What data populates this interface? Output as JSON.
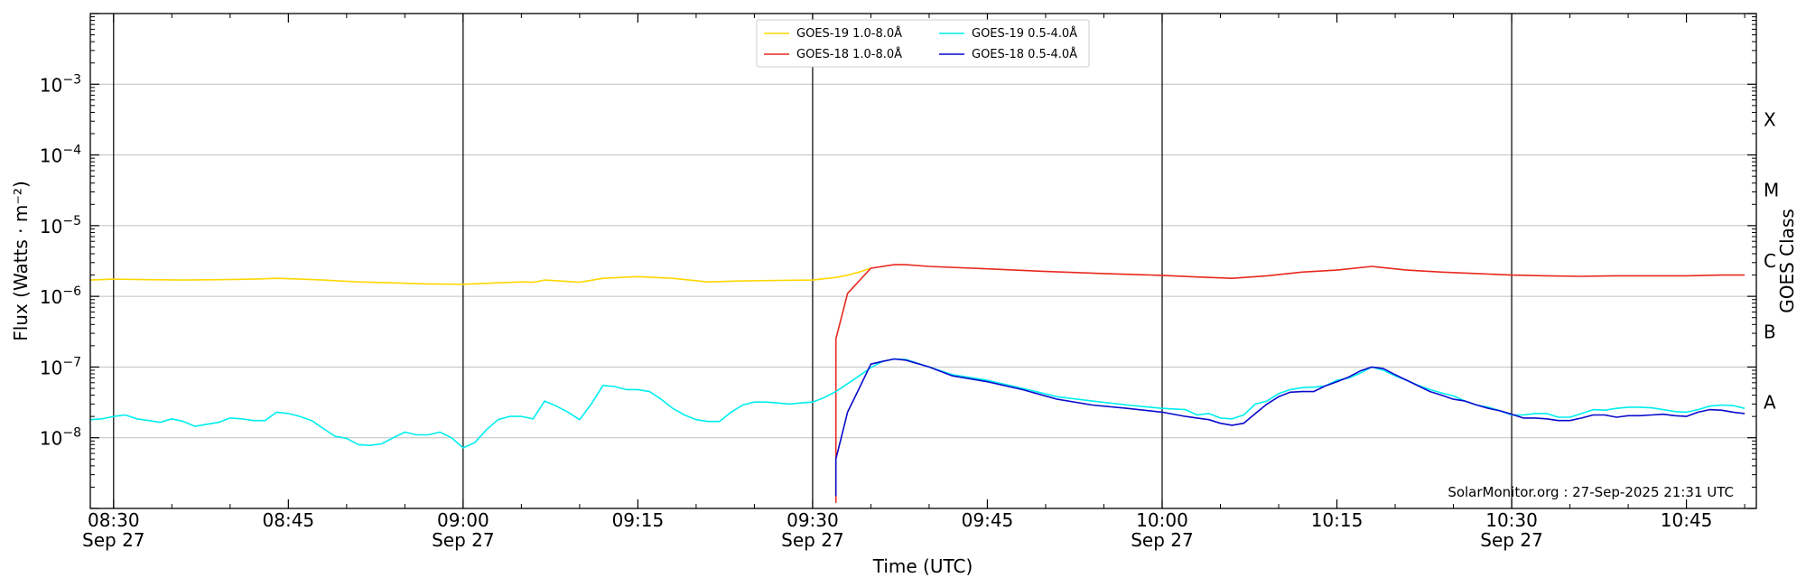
{
  "chart_data": {
    "type": "line",
    "title": "",
    "xlabel": "Time (UTC)",
    "ylabel": "Flux (Watts · m⁻²)",
    "y2label": "GOES Class",
    "credit": "SolarMonitor.org : 27-Sep-2025 21:31 UTC",
    "y_scale": "log",
    "ylim": [
      1e-09,
      0.01
    ],
    "xlim": [
      "08:28",
      "10:51"
    ],
    "grid": "horizontal",
    "legend_position": "top-center",
    "x_ticks": [
      {
        "time": "08:30",
        "line1": "08:30",
        "line2": "Sep 27",
        "major": true
      },
      {
        "time": "08:45",
        "line1": "08:45",
        "line2": "",
        "major": false
      },
      {
        "time": "09:00",
        "line1": "09:00",
        "line2": "Sep 27",
        "major": true
      },
      {
        "time": "09:15",
        "line1": "09:15",
        "line2": "",
        "major": false
      },
      {
        "time": "09:30",
        "line1": "09:30",
        "line2": "Sep 27",
        "major": true
      },
      {
        "time": "09:45",
        "line1": "09:45",
        "line2": "",
        "major": false
      },
      {
        "time": "10:00",
        "line1": "10:00",
        "line2": "Sep 27",
        "major": true
      },
      {
        "time": "10:15",
        "line1": "10:15",
        "line2": "",
        "major": false
      },
      {
        "time": "10:30",
        "line1": "10:30",
        "line2": "Sep 27",
        "major": true
      },
      {
        "time": "10:45",
        "line1": "10:45",
        "line2": "",
        "major": false
      }
    ],
    "y_ticks": [
      {
        "exp": -8,
        "label": "10",
        "sup": "−8"
      },
      {
        "exp": -7,
        "label": "10",
        "sup": "−7"
      },
      {
        "exp": -6,
        "label": "10",
        "sup": "−6"
      },
      {
        "exp": -5,
        "label": "10",
        "sup": "−5"
      },
      {
        "exp": -4,
        "label": "10",
        "sup": "−4"
      },
      {
        "exp": -3,
        "label": "10",
        "sup": "−3"
      }
    ],
    "goes_classes": [
      {
        "label": "A",
        "exp": -7.5
      },
      {
        "label": "B",
        "exp": -6.5
      },
      {
        "label": "C",
        "exp": -5.5
      },
      {
        "label": "M",
        "exp": -4.5
      },
      {
        "label": "X",
        "exp": -3.5
      }
    ],
    "series": [
      {
        "name": "GOES-19 1.0-8.0Å",
        "color": "#FFD700",
        "x": [
          "08:28",
          "08:30",
          "08:33",
          "08:36",
          "08:39",
          "08:42",
          "08:44",
          "08:46",
          "08:48",
          "08:51",
          "08:54",
          "08:57",
          "09:00",
          "09:03",
          "09:05",
          "09:06",
          "09:07",
          "09:09",
          "09:10",
          "09:12",
          "09:15",
          "09:18",
          "09:21",
          "09:24",
          "09:27",
          "09:30",
          "09:32",
          "09:33",
          "09:34",
          "09:35"
        ],
        "y": [
          1.7e-06,
          1.75e-06,
          1.72e-06,
          1.7e-06,
          1.72e-06,
          1.75e-06,
          1.8e-06,
          1.75e-06,
          1.7e-06,
          1.6e-06,
          1.55e-06,
          1.5e-06,
          1.48e-06,
          1.55e-06,
          1.6e-06,
          1.58e-06,
          1.7e-06,
          1.62e-06,
          1.58e-06,
          1.8e-06,
          1.9e-06,
          1.8e-06,
          1.6e-06,
          1.65e-06,
          1.68e-06,
          1.7e-06,
          1.85e-06,
          2e-06,
          2.2e-06,
          2.5e-06
        ]
      },
      {
        "name": "GOES-18 1.0-8.0Å",
        "color": "#E8281E",
        "x": [
          "09:32",
          "09:32",
          "09:33",
          "09:35",
          "09:37",
          "09:38",
          "09:40",
          "09:45",
          "09:50",
          "09:55",
          "10:00",
          "10:03",
          "10:06",
          "10:09",
          "10:12",
          "10:15",
          "10:18",
          "10:21",
          "10:24",
          "10:27",
          "10:30",
          "10:33",
          "10:36",
          "10:39",
          "10:42",
          "10:45",
          "10:48",
          "10:50"
        ],
        "y": [
          1.2e-09,
          2.5e-07,
          1.1e-06,
          2.5e-06,
          2.8e-06,
          2.8e-06,
          2.65e-06,
          2.45e-06,
          2.25e-06,
          2.1e-06,
          1.98e-06,
          1.88e-06,
          1.8e-06,
          1.95e-06,
          2.2e-06,
          2.35e-06,
          2.65e-06,
          2.35e-06,
          2.2e-06,
          2.1e-06,
          2e-06,
          1.95e-06,
          1.92e-06,
          1.95e-06,
          1.95e-06,
          1.95e-06,
          2e-06,
          2e-06
        ]
      },
      {
        "name": "GOES-19 0.5-4.0Å",
        "color": "#00EEEE",
        "x": [
          "08:28",
          "08:29",
          "08:30",
          "08:31",
          "08:32",
          "08:33",
          "08:34",
          "08:35",
          "08:36",
          "08:37",
          "08:38",
          "08:39",
          "08:40",
          "08:41",
          "08:42",
          "08:43",
          "08:44",
          "08:45",
          "08:46",
          "08:47",
          "08:48",
          "08:49",
          "08:50",
          "08:51",
          "08:52",
          "08:53",
          "08:54",
          "08:55",
          "08:56",
          "08:57",
          "08:58",
          "08:59",
          "09:00",
          "09:01",
          "09:02",
          "09:03",
          "09:04",
          "09:05",
          "09:06",
          "09:07",
          "09:08",
          "09:09",
          "09:10",
          "09:11",
          "09:12",
          "09:13",
          "09:14",
          "09:15",
          "09:16",
          "09:17",
          "09:18",
          "09:19",
          "09:20",
          "09:21",
          "09:22",
          "09:23",
          "09:24",
          "09:25",
          "09:26",
          "09:27",
          "09:28",
          "09:29",
          "09:30",
          "09:31",
          "09:32",
          "09:33",
          "09:34",
          "09:35",
          "09:36",
          "09:37",
          "09:38",
          "09:40",
          "09:42",
          "09:45",
          "09:48",
          "09:51",
          "09:54",
          "09:57",
          "10:00",
          "10:02",
          "10:03",
          "10:04",
          "10:05",
          "10:06",
          "10:07",
          "10:08",
          "10:09",
          "10:10",
          "10:11",
          "10:12",
          "10:13",
          "10:14",
          "10:15",
          "10:16",
          "10:17",
          "10:18",
          "10:19",
          "10:20",
          "10:21",
          "10:22",
          "10:23",
          "10:24",
          "10:25",
          "10:26",
          "10:27",
          "10:28",
          "10:29",
          "10:30",
          "10:31",
          "10:32",
          "10:33",
          "10:34",
          "10:35",
          "10:36",
          "10:37",
          "10:38",
          "10:39",
          "10:40",
          "10:41",
          "10:42",
          "10:43",
          "10:44",
          "10:45",
          "10:46",
          "10:47",
          "10:48",
          "10:49",
          "10:50"
        ],
        "y": [
          1.8e-08,
          1.85e-08,
          2e-08,
          2.1e-08,
          1.85e-08,
          1.75e-08,
          1.65e-08,
          1.85e-08,
          1.7e-08,
          1.45e-08,
          1.55e-08,
          1.65e-08,
          1.9e-08,
          1.85e-08,
          1.75e-08,
          1.75e-08,
          2.3e-08,
          2.2e-08,
          2e-08,
          1.75e-08,
          1.35e-08,
          1.05e-08,
          9.8e-09,
          8e-09,
          7.8e-09,
          8.2e-09,
          1e-08,
          1.2e-08,
          1.1e-08,
          1.1e-08,
          1.2e-08,
          1e-08,
          7.2e-09,
          8.5e-09,
          1.3e-08,
          1.8e-08,
          2e-08,
          2e-08,
          1.85e-08,
          3.3e-08,
          2.8e-08,
          2.3e-08,
          1.8e-08,
          3e-08,
          5.5e-08,
          5.3e-08,
          4.8e-08,
          4.8e-08,
          4.5e-08,
          3.5e-08,
          2.6e-08,
          2.1e-08,
          1.8e-08,
          1.7e-08,
          1.7e-08,
          2.3e-08,
          2.9e-08,
          3.2e-08,
          3.2e-08,
          3.1e-08,
          3e-08,
          3.1e-08,
          3.2e-08,
          3.7e-08,
          4.5e-08,
          5.8e-08,
          7.5e-08,
          9.8e-08,
          1.2e-07,
          1.3e-07,
          1.28e-07,
          1e-07,
          7.8e-08,
          6.5e-08,
          5e-08,
          3.8e-08,
          3.3e-08,
          2.9e-08,
          2.6e-08,
          2.5e-08,
          2.1e-08,
          2.2e-08,
          1.9e-08,
          1.85e-08,
          2.1e-08,
          3e-08,
          3.3e-08,
          4.2e-08,
          4.8e-08,
          5.1e-08,
          5.2e-08,
          5.4e-08,
          6.5e-08,
          7e-08,
          8.2e-08,
          1e-07,
          9e-08,
          7.5e-08,
          6.5e-08,
          5.5e-08,
          4.8e-08,
          4.3e-08,
          3.9e-08,
          3.3e-08,
          2.9e-08,
          2.7e-08,
          2.4e-08,
          2.1e-08,
          2.1e-08,
          2.2e-08,
          2.2e-08,
          1.95e-08,
          1.95e-08,
          2.2e-08,
          2.5e-08,
          2.45e-08,
          2.6e-08,
          2.7e-08,
          2.7e-08,
          2.65e-08,
          2.5e-08,
          2.35e-08,
          2.3e-08,
          2.5e-08,
          2.8e-08,
          2.9e-08,
          2.85e-08,
          2.6e-08
        ]
      },
      {
        "name": "GOES-18 0.5-4.0Å",
        "color": "#0A0ACC",
        "x": [
          "09:32",
          "09:32",
          "09:33",
          "09:34",
          "09:35",
          "09:36",
          "09:37",
          "09:38",
          "09:40",
          "09:42",
          "09:45",
          "09:48",
          "09:51",
          "09:54",
          "09:57",
          "10:00",
          "10:02",
          "10:03",
          "10:04",
          "10:05",
          "10:06",
          "10:07",
          "10:08",
          "10:09",
          "10:10",
          "10:11",
          "10:12",
          "10:13",
          "10:14",
          "10:15",
          "10:16",
          "10:17",
          "10:18",
          "10:19",
          "10:20",
          "10:21",
          "10:22",
          "10:23",
          "10:24",
          "10:25",
          "10:26",
          "10:27",
          "10:28",
          "10:29",
          "10:30",
          "10:31",
          "10:32",
          "10:33",
          "10:34",
          "10:35",
          "10:36",
          "10:37",
          "10:38",
          "10:39",
          "10:40",
          "10:41",
          "10:42",
          "10:43",
          "10:44",
          "10:45",
          "10:46",
          "10:47",
          "10:48",
          "10:49",
          "10:50"
        ],
        "y": [
          1.5e-09,
          5e-09,
          2.3e-08,
          5e-08,
          1.1e-07,
          1.2e-07,
          1.3e-07,
          1.25e-07,
          1e-07,
          7.5e-08,
          6.2e-08,
          4.8e-08,
          3.5e-08,
          2.9e-08,
          2.6e-08,
          2.3e-08,
          2e-08,
          1.9e-08,
          1.8e-08,
          1.6e-08,
          1.5e-08,
          1.6e-08,
          2.2e-08,
          3e-08,
          3.8e-08,
          4.4e-08,
          4.5e-08,
          4.5e-08,
          5.4e-08,
          6.2e-08,
          7.2e-08,
          8.8e-08,
          1e-07,
          9.5e-08,
          7.8e-08,
          6.5e-08,
          5.4e-08,
          4.5e-08,
          4e-08,
          3.5e-08,
          3.3e-08,
          2.9e-08,
          2.6e-08,
          2.4e-08,
          2.15e-08,
          1.9e-08,
          1.9e-08,
          1.85e-08,
          1.75e-08,
          1.75e-08,
          1.9e-08,
          2.1e-08,
          2.1e-08,
          1.95e-08,
          2.05e-08,
          2.05e-08,
          2.1e-08,
          2.15e-08,
          2.05e-08,
          2e-08,
          2.3e-08,
          2.5e-08,
          2.45e-08,
          2.3e-08,
          2.2e-08
        ]
      }
    ]
  }
}
